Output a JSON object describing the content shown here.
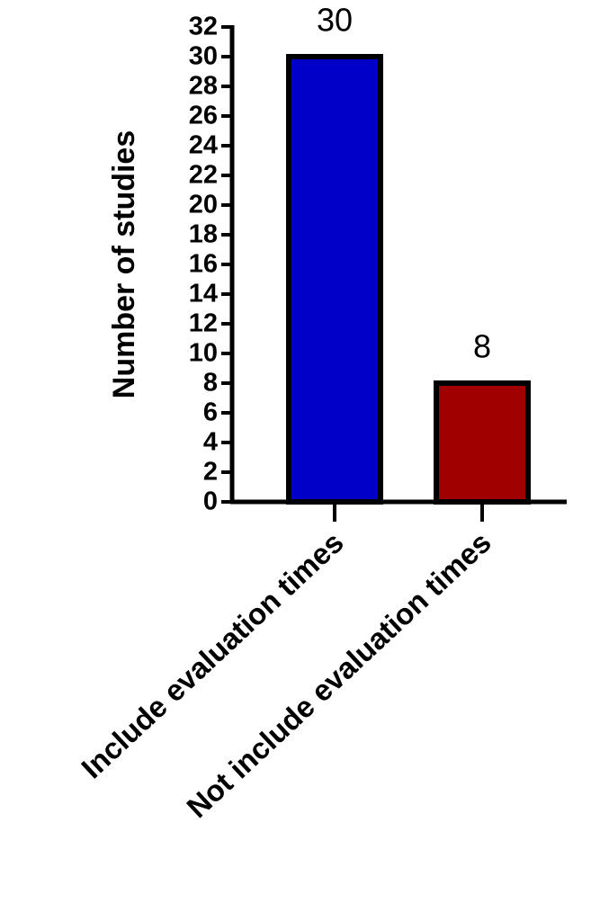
{
  "chart_data": {
    "type": "bar",
    "y_label": "Number of studies",
    "categories": [
      "Include evaluation times",
      "Not include evaluation times"
    ],
    "values": [
      30,
      8
    ],
    "colors": [
      "#0000c8",
      "#a00000"
    ],
    "ylim": [
      0,
      32
    ],
    "yticks": [
      0,
      2,
      4,
      6,
      8,
      10,
      12,
      14,
      16,
      18,
      20,
      22,
      24,
      26,
      28,
      30,
      32
    ]
  }
}
